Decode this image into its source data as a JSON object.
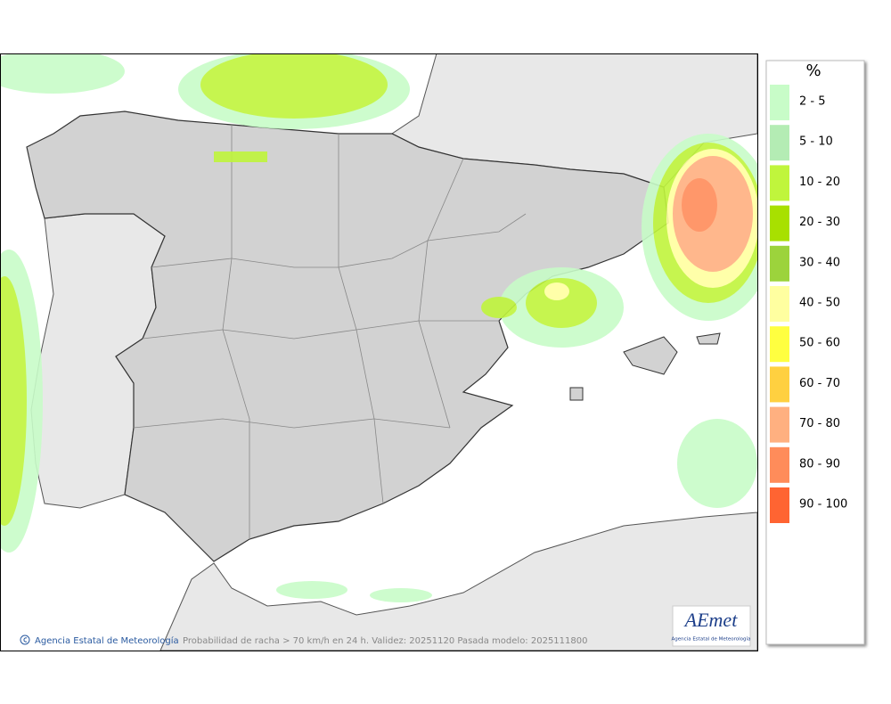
{
  "legend": {
    "title": "%",
    "items": [
      {
        "label": "2 - 5",
        "color": "#c8fcc8"
      },
      {
        "label": "5 - 10",
        "color": "#b4ecb4"
      },
      {
        "label": "10 - 20",
        "color": "#c0f53c"
      },
      {
        "label": "20 - 30",
        "color": "#a8e000"
      },
      {
        "label": "30 - 40",
        "color": "#9cd33c"
      },
      {
        "label": "40 - 50",
        "color": "#ffffa0"
      },
      {
        "label": "50 - 60",
        "color": "#ffff40"
      },
      {
        "label": "60 - 70",
        "color": "#ffd040"
      },
      {
        "label": "70 - 80",
        "color": "#ffb080"
      },
      {
        "label": "80 - 90",
        "color": "#ff8c5a"
      },
      {
        "label": "90 - 100",
        "color": "#ff6432"
      }
    ]
  },
  "footer": {
    "credit": "Agencia Estatal de Meteorología",
    "caption": "Probabilidad de racha > 70 km/h en 24 h. Validez: 20251120 Pasada modelo: 2025111800"
  },
  "logo": {
    "name": "AEmet",
    "subtitle": "Agencia Estatal de Meteorología"
  }
}
